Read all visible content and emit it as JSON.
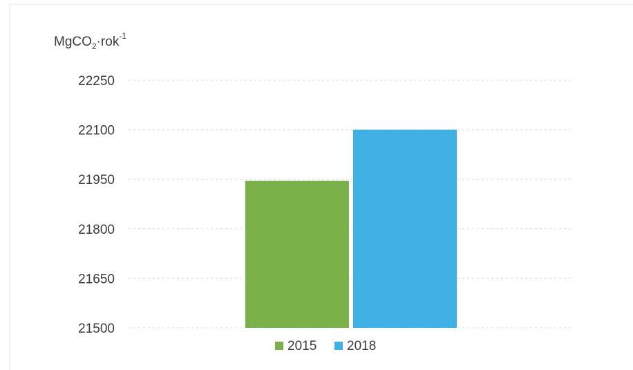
{
  "chart_data": {
    "type": "bar",
    "title": "",
    "ylabel": {
      "main": "MgCO",
      "subscript": "2",
      "middle": "·rok",
      "superscript": "-1"
    },
    "xlabel": "",
    "ylim": [
      21500,
      22250
    ],
    "yticks": [
      "21500",
      "21650",
      "21800",
      "21950",
      "22100",
      "22250"
    ],
    "grid": true,
    "legend_position": "bottom",
    "series": [
      {
        "name": "2015",
        "values": [
          21945
        ],
        "color": "#79b04a"
      },
      {
        "name": "2018",
        "values": [
          22100
        ],
        "color": "#3eb0e6"
      }
    ]
  }
}
